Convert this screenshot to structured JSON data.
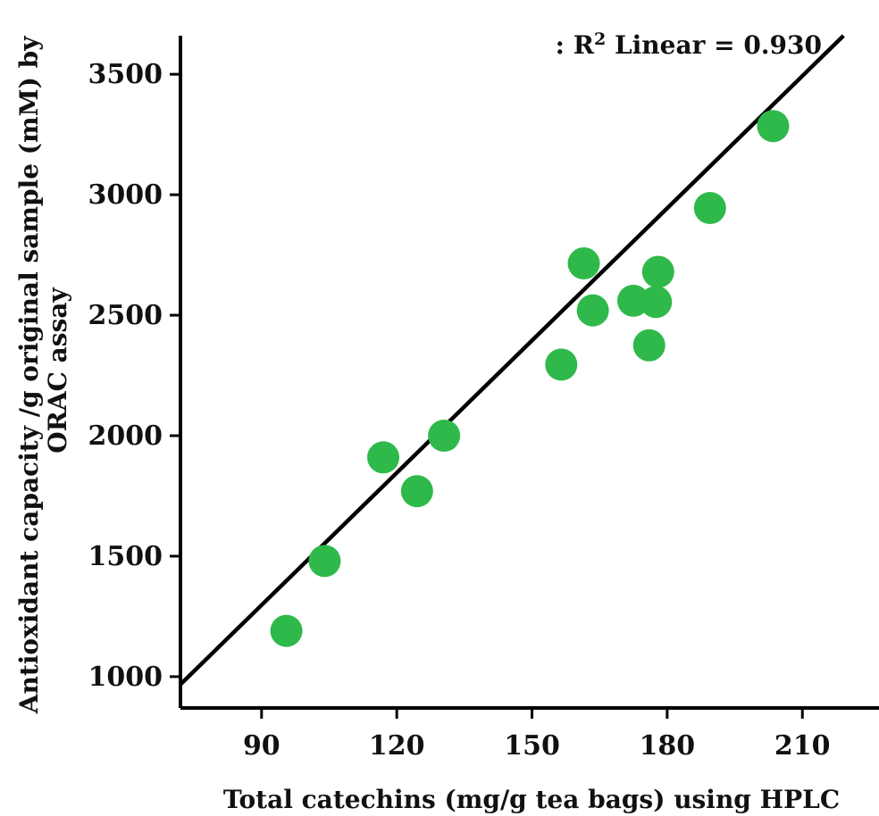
{
  "chart_data": {
    "type": "scatter",
    "x_label": "Total catechins (mg/g tea bags) using HPLC",
    "y_label_lines": [
      "Antioxidant capacity /g original sample (mM) by",
      "ORAC assay"
    ],
    "x_ticks": [
      "90",
      "120",
      "150",
      "180",
      "210"
    ],
    "y_ticks": [
      "1000",
      "1500",
      "2000",
      "2500",
      "3000",
      "3500"
    ],
    "x_range": [
      72,
      227
    ],
    "y_range": [
      870,
      3660
    ],
    "annotation": {
      "prefix": ": R",
      "superscript": "2",
      "suffix": " Linear = 0.930"
    },
    "point_color": "#2EB94A",
    "line_color": "#000000",
    "fit_line": {
      "intercept": -350,
      "slope": 18.3
    },
    "points": [
      {
        "x": 95.5,
        "y": 1190
      },
      {
        "x": 104,
        "y": 1480
      },
      {
        "x": 117,
        "y": 1910
      },
      {
        "x": 124.5,
        "y": 1770
      },
      {
        "x": 130.5,
        "y": 2000
      },
      {
        "x": 156.5,
        "y": 2295
      },
      {
        "x": 161.5,
        "y": 2715
      },
      {
        "x": 163.5,
        "y": 2520
      },
      {
        "x": 172.5,
        "y": 2560
      },
      {
        "x": 176,
        "y": 2375
      },
      {
        "x": 177.5,
        "y": 2555
      },
      {
        "x": 178,
        "y": 2680
      },
      {
        "x": 189.5,
        "y": 2945
      },
      {
        "x": 203.5,
        "y": 3285
      }
    ]
  }
}
